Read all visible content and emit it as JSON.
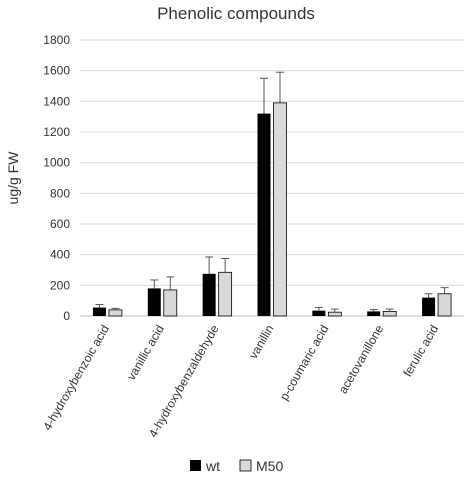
{
  "chart_data": {
    "type": "bar",
    "title": "Phenolic compounds",
    "xlabel": "",
    "ylabel": "ug/g FW",
    "ylim": [
      0,
      1800
    ],
    "yticks": [
      0,
      200,
      400,
      600,
      800,
      1000,
      1200,
      1400,
      1600,
      1800
    ],
    "grid": true,
    "legend_position": "bottom",
    "categories": [
      "4-hydroxybenzoic acid",
      "vanillic acid",
      "4-hydroxybenzaldehyde",
      "vanillin",
      "p-coumaric acid",
      "acetovanillone",
      "ferulic acid"
    ],
    "series": [
      {
        "name": "wt",
        "color": "#000000",
        "values": [
          55,
          180,
          275,
          1320,
          35,
          30,
          120
        ],
        "errors": [
          20,
          55,
          110,
          230,
          20,
          12,
          25
        ]
      },
      {
        "name": "M50",
        "color": "#d9d9d9",
        "values": [
          40,
          170,
          285,
          1390,
          25,
          30,
          145
        ],
        "errors": [
          10,
          85,
          90,
          200,
          20,
          15,
          40
        ]
      }
    ]
  }
}
